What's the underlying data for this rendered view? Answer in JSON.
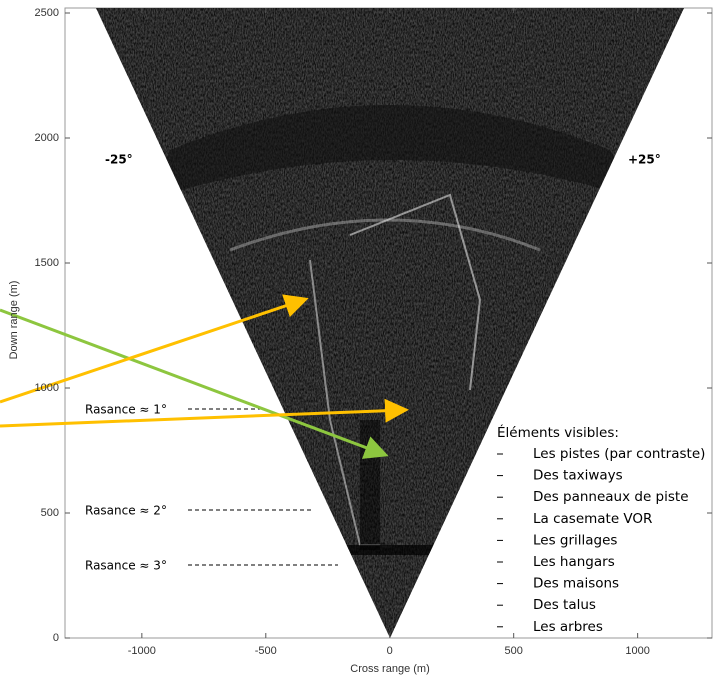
{
  "chart_data": {
    "type": "image",
    "xlabel": "Cross range (m)",
    "ylabel": "Down range (m)",
    "xlim": [
      -1310,
      1300
    ],
    "ylim": [
      0,
      2520
    ],
    "xticks": [
      -1000,
      -500,
      0,
      500,
      1000
    ],
    "yticks": [
      0,
      500,
      1000,
      1500,
      2000,
      2500
    ],
    "angle_labels": [
      "-25°",
      "+25°"
    ],
    "rasance_labels": [
      "Rasance ≈ 1°",
      "Rasance ≈ 2°",
      "Rasance ≈ 3°"
    ],
    "legend_title": "Éléments visibles:",
    "legend_items": [
      "Les pistes (par contraste)",
      "Des taxiways",
      "Des panneaux de piste",
      "La casemate VOR",
      "Les grillages",
      "Les hangars",
      "Des maisons",
      "Des talus",
      "Les arbres"
    ]
  }
}
